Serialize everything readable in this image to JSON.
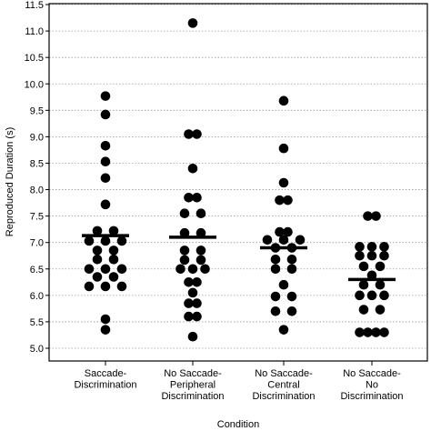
{
  "chart_data": {
    "type": "scatter",
    "xlabel": "Condition",
    "ylabel": "Reproduced Duration (s)",
    "ylim": [
      5.0,
      11.5
    ],
    "yticks": [
      "5.0",
      "5.5",
      "6.0",
      "6.5",
      "7.0",
      "7.5",
      "8.0",
      "8.5",
      "9.0",
      "9.5",
      "10.0",
      "10.5",
      "11.0",
      "11.5"
    ],
    "grid": true,
    "categories": [
      [
        "Saccade-",
        "Discrimination"
      ],
      [
        "No Saccade-",
        "Peripheral",
        "Discrimination"
      ],
      [
        "No Saccade-",
        "Central",
        "Discrimination"
      ],
      [
        "No Saccade-",
        "No",
        "Discrimination"
      ]
    ],
    "series": [
      {
        "mean": 7.13,
        "points": [
          {
            "y": 9.77,
            "o": 0
          },
          {
            "y": 9.42,
            "o": 0
          },
          {
            "y": 8.83,
            "o": 0
          },
          {
            "y": 8.53,
            "o": 0
          },
          {
            "y": 8.22,
            "o": 0
          },
          {
            "y": 7.72,
            "o": 0
          },
          {
            "y": 7.22,
            "o": -1
          },
          {
            "y": 7.22,
            "o": 1
          },
          {
            "y": 7.03,
            "o": -2
          },
          {
            "y": 7.03,
            "o": 0
          },
          {
            "y": 7.03,
            "o": 2
          },
          {
            "y": 6.85,
            "o": -1
          },
          {
            "y": 6.85,
            "o": 1
          },
          {
            "y": 6.68,
            "o": -1
          },
          {
            "y": 6.68,
            "o": 1
          },
          {
            "y": 6.5,
            "o": -2
          },
          {
            "y": 6.5,
            "o": 0
          },
          {
            "y": 6.5,
            "o": 2
          },
          {
            "y": 6.35,
            "o": -1
          },
          {
            "y": 6.35,
            "o": 1
          },
          {
            "y": 6.17,
            "o": -2
          },
          {
            "y": 6.17,
            "o": 0
          },
          {
            "y": 6.17,
            "o": 2
          },
          {
            "y": 5.55,
            "o": 0
          },
          {
            "y": 5.35,
            "o": 0
          }
        ]
      },
      {
        "mean": 7.1,
        "points": [
          {
            "y": 11.15,
            "o": 0
          },
          {
            "y": 9.05,
            "o": -0.5
          },
          {
            "y": 9.05,
            "o": 0.5
          },
          {
            "y": 8.4,
            "o": 0
          },
          {
            "y": 7.85,
            "o": -0.5
          },
          {
            "y": 7.85,
            "o": 0.5
          },
          {
            "y": 7.55,
            "o": -1
          },
          {
            "y": 7.55,
            "o": 1
          },
          {
            "y": 7.18,
            "o": -1
          },
          {
            "y": 7.18,
            "o": 1
          },
          {
            "y": 6.85,
            "o": -1
          },
          {
            "y": 6.85,
            "o": 1
          },
          {
            "y": 6.67,
            "o": -1
          },
          {
            "y": 6.67,
            "o": 1
          },
          {
            "y": 6.5,
            "o": -1.5
          },
          {
            "y": 6.5,
            "o": 0
          },
          {
            "y": 6.5,
            "o": 1.5
          },
          {
            "y": 6.25,
            "o": -0.5
          },
          {
            "y": 6.25,
            "o": 0.5
          },
          {
            "y": 6.05,
            "o": 0
          },
          {
            "y": 5.85,
            "o": -0.5
          },
          {
            "y": 5.85,
            "o": 0.5
          },
          {
            "y": 5.6,
            "o": -0.5
          },
          {
            "y": 5.6,
            "o": 0.5
          },
          {
            "y": 5.22,
            "o": 0
          }
        ]
      },
      {
        "mean": 6.9,
        "points": [
          {
            "y": 9.68,
            "o": 0
          },
          {
            "y": 8.78,
            "o": 0
          },
          {
            "y": 8.13,
            "o": 0
          },
          {
            "y": 7.8,
            "o": -0.5
          },
          {
            "y": 7.8,
            "o": 0.5
          },
          {
            "y": 7.2,
            "o": -0.5
          },
          {
            "y": 7.2,
            "o": 0.5
          },
          {
            "y": 7.05,
            "o": -2
          },
          {
            "y": 7.05,
            "o": 0
          },
          {
            "y": 7.05,
            "o": 2
          },
          {
            "y": 6.9,
            "o": -1
          },
          {
            "y": 6.9,
            "o": 1
          },
          {
            "y": 6.68,
            "o": -1
          },
          {
            "y": 6.68,
            "o": 1
          },
          {
            "y": 6.5,
            "o": -1
          },
          {
            "y": 6.5,
            "o": 1
          },
          {
            "y": 6.2,
            "o": 0
          },
          {
            "y": 5.98,
            "o": -1
          },
          {
            "y": 5.98,
            "o": 1
          },
          {
            "y": 5.7,
            "o": -1
          },
          {
            "y": 5.7,
            "o": 1
          },
          {
            "y": 5.35,
            "o": 0
          }
        ]
      },
      {
        "mean": 6.3,
        "points": [
          {
            "y": 7.5,
            "o": -0.5
          },
          {
            "y": 7.5,
            "o": 0.5
          },
          {
            "y": 6.92,
            "o": -1.5
          },
          {
            "y": 6.92,
            "o": 0
          },
          {
            "y": 6.92,
            "o": 1.5
          },
          {
            "y": 6.75,
            "o": -1.5
          },
          {
            "y": 6.75,
            "o": 0
          },
          {
            "y": 6.75,
            "o": 1.5
          },
          {
            "y": 6.55,
            "o": -1
          },
          {
            "y": 6.55,
            "o": 1
          },
          {
            "y": 6.38,
            "o": 0
          },
          {
            "y": 6.2,
            "o": -1
          },
          {
            "y": 6.2,
            "o": 1
          },
          {
            "y": 6.0,
            "o": -1.5
          },
          {
            "y": 6.0,
            "o": 0
          },
          {
            "y": 6.0,
            "o": 1.5
          },
          {
            "y": 5.73,
            "o": -1
          },
          {
            "y": 5.73,
            "o": 1
          },
          {
            "y": 5.3,
            "o": -1.5
          },
          {
            "y": 5.3,
            "o": -0.5
          },
          {
            "y": 5.3,
            "o": 0.5
          },
          {
            "y": 5.3,
            "o": 1.5
          }
        ]
      }
    ]
  }
}
